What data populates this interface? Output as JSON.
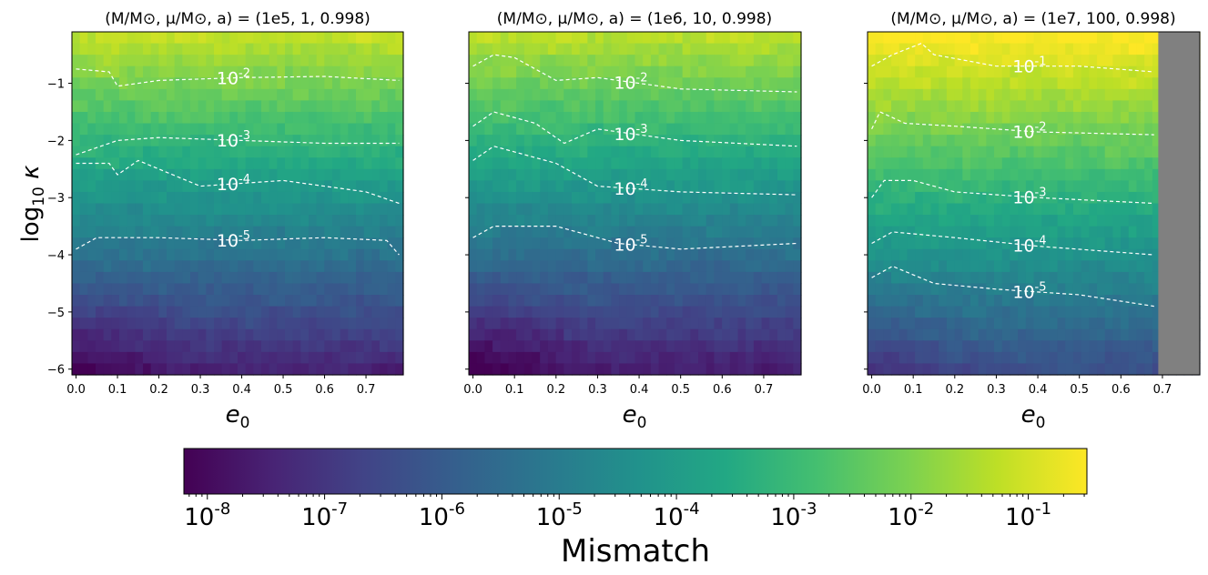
{
  "figure": {
    "panels": [
      {
        "title": "(M/M⊙, μ/M⊙, a) = (1e5, 1, 0.998)",
        "xlabel": "e0",
        "contour_labels": [
          "10^-2",
          "10^-3",
          "10^-4",
          "10^-5"
        ]
      },
      {
        "title": "(M/M⊙, μ/M⊙, a) = (1e6, 10, 0.998)",
        "xlabel": "e0",
        "contour_labels": [
          "10^-2",
          "10^-3",
          "10^-4",
          "10^-5"
        ]
      },
      {
        "title": "(M/M⊙, μ/M⊙, a) = (1e7, 100, 0.998)",
        "xlabel": "e0",
        "contour_labels": [
          "10^-1",
          "10^-2",
          "10^-3",
          "10^-4",
          "10^-5"
        ]
      }
    ],
    "ylabel": "log10 κ",
    "colorbar": {
      "label": "Mismatch",
      "tick_labels": [
        "10^-8",
        "10^-7",
        "10^-6",
        "10^-5",
        "10^-4",
        "10^-3",
        "10^-2",
        "10^-1"
      ],
      "colormap": "viridis",
      "scale": "log"
    },
    "x_tick_labels": [
      "0.0",
      "0.1",
      "0.2",
      "0.3",
      "0.4",
      "0.5",
      "0.6",
      "0.7"
    ],
    "y_tick_labels": [
      "−1",
      "−2",
      "−3",
      "−4",
      "−5",
      "−6"
    ],
    "masked_color": "#808080",
    "contour_color": "#ffffff"
  },
  "chart_data": [
    {
      "type": "heatmap",
      "title": "(M/M⊙, μ/M⊙, a) = (1e5, 1, 0.998)",
      "xlabel": "e0",
      "ylabel": "log10 κ",
      "xlim": [
        -0.01,
        0.79
      ],
      "ylim": [
        -6.1,
        -0.1
      ],
      "x_ticks": [
        0.0,
        0.1,
        0.2,
        0.3,
        0.4,
        0.5,
        0.6,
        0.7
      ],
      "y_ticks": [
        -1,
        -2,
        -3,
        -4,
        -5,
        -6
      ],
      "color_scale": "log10 mismatch",
      "clim": [
        -8.2,
        -0.5
      ],
      "mismatch_model": {
        "log10_mismatch_at_kappa_minus1": -2.1,
        "decades_per_unit_log10_kappa": 1.06
      },
      "contours": [
        {
          "level": "10^-2",
          "x": [
            0.0,
            0.08,
            0.1,
            0.2,
            0.4,
            0.6,
            0.78
          ],
          "y": [
            -0.75,
            -0.8,
            -1.05,
            -0.95,
            -0.9,
            -0.88,
            -0.95
          ]
        },
        {
          "level": "10^-3",
          "x": [
            0.0,
            0.1,
            0.2,
            0.4,
            0.6,
            0.78
          ],
          "y": [
            -2.25,
            -2.0,
            -1.95,
            -2.0,
            -2.05,
            -2.05
          ]
        },
        {
          "level": "10^-4",
          "x": [
            0.0,
            0.08,
            0.1,
            0.15,
            0.3,
            0.5,
            0.7,
            0.78
          ],
          "y": [
            -2.4,
            -2.4,
            -2.6,
            -2.35,
            -2.8,
            -2.7,
            -2.9,
            -3.1
          ]
        },
        {
          "level": "10^-5",
          "x": [
            0.0,
            0.05,
            0.2,
            0.4,
            0.6,
            0.75,
            0.78
          ],
          "y": [
            -3.9,
            -3.7,
            -3.7,
            -3.75,
            -3.7,
            -3.75,
            -4.0
          ]
        }
      ]
    },
    {
      "type": "heatmap",
      "title": "(M/M⊙, μ/M⊙, a) = (1e6, 10, 0.998)",
      "xlabel": "e0",
      "xlim": [
        -0.01,
        0.79
      ],
      "ylim": [
        -6.1,
        -0.1
      ],
      "x_ticks": [
        0.0,
        0.1,
        0.2,
        0.3,
        0.4,
        0.5,
        0.6,
        0.7
      ],
      "color_scale": "log10 mismatch",
      "mismatch_model": {
        "log10_mismatch_at_kappa_minus1": -2.2,
        "decades_per_unit_log10_kappa": 1.07
      },
      "contours": [
        {
          "level": "10^-2",
          "x": [
            0.0,
            0.05,
            0.1,
            0.2,
            0.3,
            0.5,
            0.78
          ],
          "y": [
            -0.7,
            -0.5,
            -0.55,
            -0.95,
            -0.9,
            -1.1,
            -1.15
          ]
        },
        {
          "level": "10^-3",
          "x": [
            0.0,
            0.05,
            0.15,
            0.22,
            0.3,
            0.5,
            0.78
          ],
          "y": [
            -1.75,
            -1.5,
            -1.7,
            -2.05,
            -1.8,
            -2.0,
            -2.1
          ]
        },
        {
          "level": "10^-4",
          "x": [
            0.0,
            0.05,
            0.2,
            0.3,
            0.5,
            0.78
          ],
          "y": [
            -2.35,
            -2.1,
            -2.4,
            -2.8,
            -2.9,
            -2.95
          ]
        },
        {
          "level": "10^-5",
          "x": [
            0.0,
            0.05,
            0.2,
            0.35,
            0.5,
            0.78
          ],
          "y": [
            -3.7,
            -3.5,
            -3.5,
            -3.8,
            -3.9,
            -3.8
          ]
        }
      ]
    },
    {
      "type": "heatmap",
      "title": "(M/M⊙, μ/M⊙, a) = (1e7, 100, 0.998)",
      "xlabel": "e0",
      "xlim": [
        -0.01,
        0.79
      ],
      "ylim": [
        -6.1,
        -0.1
      ],
      "x_ticks": [
        0.0,
        0.1,
        0.2,
        0.3,
        0.4,
        0.5,
        0.6,
        0.7
      ],
      "color_scale": "log10 mismatch",
      "masked_region": {
        "x_from": 0.69,
        "x_to": 0.79,
        "note": "no data (gray)"
      },
      "mismatch_model": {
        "log10_mismatch_at_kappa_minus1": -1.3,
        "decades_per_unit_log10_kappa": 1.0
      },
      "contours": [
        {
          "level": "10^-1",
          "x": [
            0.0,
            0.05,
            0.12,
            0.15,
            0.3,
            0.5,
            0.68
          ],
          "y": [
            -0.7,
            -0.5,
            -0.3,
            -0.5,
            -0.7,
            -0.7,
            -0.8
          ]
        },
        {
          "level": "10^-2",
          "x": [
            0.0,
            0.02,
            0.08,
            0.2,
            0.4,
            0.68
          ],
          "y": [
            -1.8,
            -1.5,
            -1.7,
            -1.75,
            -1.85,
            -1.9
          ]
        },
        {
          "level": "10^-3",
          "x": [
            0.0,
            0.03,
            0.1,
            0.2,
            0.4,
            0.68
          ],
          "y": [
            -3.0,
            -2.7,
            -2.7,
            -2.9,
            -3.0,
            -3.1
          ]
        },
        {
          "level": "10^-4",
          "x": [
            0.0,
            0.05,
            0.2,
            0.4,
            0.68
          ],
          "y": [
            -3.8,
            -3.6,
            -3.7,
            -3.85,
            -4.0
          ]
        },
        {
          "level": "10^-5",
          "x": [
            0.0,
            0.05,
            0.15,
            0.3,
            0.5,
            0.68
          ],
          "y": [
            -4.4,
            -4.2,
            -4.5,
            -4.6,
            -4.7,
            -4.9
          ]
        }
      ]
    }
  ]
}
